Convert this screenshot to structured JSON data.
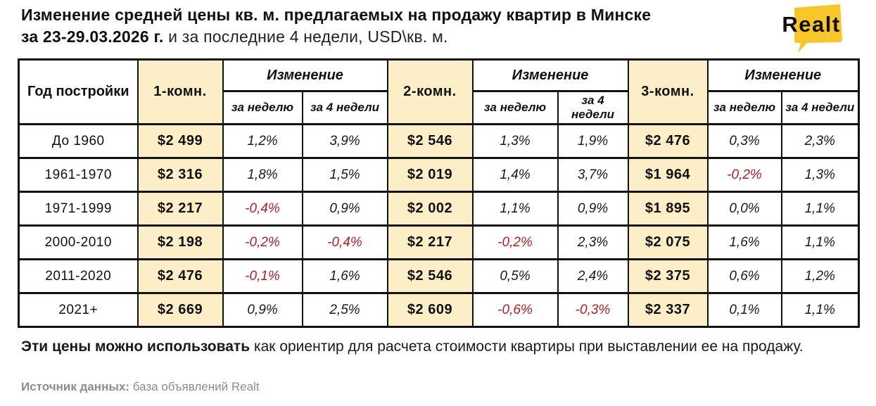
{
  "header": {
    "title_line1": "Изменение средней цены кв. м. предлагаемых на продажу квартир в Минске",
    "title_line2_bold": "за 23-29.03.2026 г.",
    "title_line2_rest": " и за последние 4 недели, USD\\кв. м.",
    "logo_text": "Realt"
  },
  "colors": {
    "accent_yellow": "#F8C62B",
    "cell_cream": "#FCEFC7",
    "negative_red": "#AE1F24",
    "text_black": "#111111",
    "muted_gray": "#8C8C8C"
  },
  "table": {
    "year_header": "Год постройки",
    "change_label": "Изменение",
    "week_label": "за неделю",
    "four_weeks_label": "за 4 недели",
    "rooms": [
      "1-комн.",
      "2-комн.",
      "3-комн."
    ],
    "rows": [
      {
        "year": "До 1960",
        "values": [
          "$2 499",
          "1,2%",
          "3,9%",
          "$2 546",
          "1,3%",
          "1,9%",
          "$2 476",
          "0,3%",
          "2,3%"
        ]
      },
      {
        "year": "1961-1970",
        "values": [
          "$2 316",
          "1,8%",
          "1,5%",
          "$2 019",
          "1,4%",
          "3,7%",
          "$1 964",
          "-0,2%",
          "1,3%"
        ]
      },
      {
        "year": "1971-1999",
        "values": [
          "$2 217",
          "-0,4%",
          "0,9%",
          "$2 002",
          "1,1%",
          "0,9%",
          "$1 895",
          "0,0%",
          "1,1%"
        ]
      },
      {
        "year": "2000-2010",
        "values": [
          "$2 198",
          "-0,2%",
          "-0,4%",
          "$2 217",
          "-0,2%",
          "2,3%",
          "$2 075",
          "1,6%",
          "1,1%"
        ]
      },
      {
        "year": "2011-2020",
        "values": [
          "$2 476",
          "-0,1%",
          "1,6%",
          "$2 546",
          "0,5%",
          "2,4%",
          "$2 375",
          "0,6%",
          "1,2%"
        ]
      },
      {
        "year": "2021+",
        "values": [
          "$2 669",
          "0,9%",
          "2,5%",
          "$2 609",
          "-0,6%",
          "-0,3%",
          "$2 337",
          "0,1%",
          "1,1%"
        ]
      }
    ]
  },
  "footer": {
    "note_bold": "Эти цены можно использовать",
    "note_rest": " как ориентир для расчета стоимости квартиры при выставлении ее на продажу.",
    "source_label": "Источник данных:",
    "source_value": " база объявлений Realt"
  },
  "chart_data": {
    "type": "table",
    "title": "Изменение средней цены кв. м. предлагаемых на продажу квартир в Минске за 23-29.03.2026 г. и за последние 4 недели, USD\\кв. м.",
    "columns": [
      "Год постройки",
      "1-комн.",
      "1-комн. изменение за неделю",
      "1-комн. изменение за 4 недели",
      "2-комн.",
      "2-комн. изменение за неделю",
      "2-комн. изменение за 4 недели",
      "3-комн.",
      "3-комн. изменение за неделю",
      "3-комн. изменение за 4 недели"
    ],
    "rows": [
      [
        "До 1960",
        "$2 499",
        "1,2%",
        "3,9%",
        "$2 546",
        "1,3%",
        "1,9%",
        "$2 476",
        "0,3%",
        "2,3%"
      ],
      [
        "1961-1970",
        "$2 316",
        "1,8%",
        "1,5%",
        "$2 019",
        "1,4%",
        "3,7%",
        "$1 964",
        "-0,2%",
        "1,3%"
      ],
      [
        "1971-1999",
        "$2 217",
        "-0,4%",
        "0,9%",
        "$2 002",
        "1,1%",
        "0,9%",
        "$1 895",
        "0,0%",
        "1,1%"
      ],
      [
        "2000-2010",
        "$2 198",
        "-0,2%",
        "-0,4%",
        "$2 217",
        "-0,2%",
        "2,3%",
        "$2 075",
        "1,6%",
        "1,1%"
      ],
      [
        "2011-2020",
        "$2 476",
        "-0,1%",
        "1,6%",
        "$2 546",
        "0,5%",
        "2,4%",
        "$2 375",
        "0,6%",
        "1,2%"
      ],
      [
        "2021+",
        "$2 669",
        "0,9%",
        "2,5%",
        "$2 609",
        "-0,6%",
        "-0,3%",
        "$2 337",
        "0,1%",
        "1,1%"
      ]
    ],
    "notes": "Отрицательные значения выделены красным цветом; столбцы цен выделены кремовым фоном."
  }
}
